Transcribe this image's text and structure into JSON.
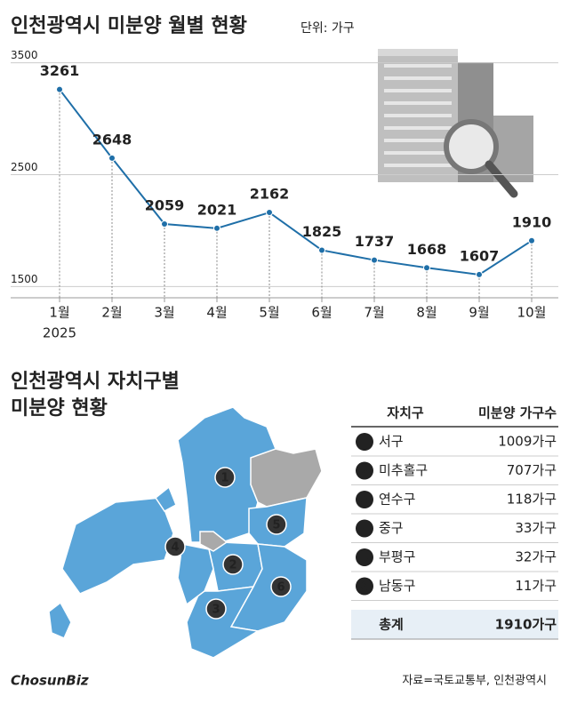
{
  "chart_data": {
    "type": "line",
    "title": "인천광역시 미분양 월별 현황",
    "unit": "단위: 가구",
    "categories": [
      "1월",
      "2월",
      "3월",
      "4월",
      "5월",
      "6월",
      "7월",
      "8월",
      "9월",
      "10월"
    ],
    "x_year": "2025",
    "values": [
      3261,
      2648,
      2059,
      2021,
      2162,
      1825,
      1737,
      1668,
      1607,
      1910
    ],
    "color": "#1f6fa8",
    "ylim": [
      1400,
      3600
    ],
    "yticks": [
      1500,
      2500,
      3500
    ],
    "grid": true
  },
  "district_section": {
    "title_lines": [
      "인천광역시 자치구별",
      "미분양 현황"
    ],
    "table": {
      "header": [
        "자치구",
        "미분양 가구수"
      ],
      "rows": [
        {
          "num": "1",
          "district": "서구",
          "count": "1009가구"
        },
        {
          "num": "2",
          "district": "미추홀구",
          "count": "707가구"
        },
        {
          "num": "3",
          "district": "연수구",
          "count": "118가구"
        },
        {
          "num": "4",
          "district": "중구",
          "count": "33가구"
        },
        {
          "num": "5",
          "district": "부평구",
          "count": "32가구"
        },
        {
          "num": "6",
          "district": "남동구",
          "count": "11가구"
        }
      ],
      "total": [
        "총계",
        "1910가구"
      ]
    }
  },
  "footer": {
    "source": "자료=국토교통부, 인천광역시",
    "logo": "ChosunBiz"
  }
}
